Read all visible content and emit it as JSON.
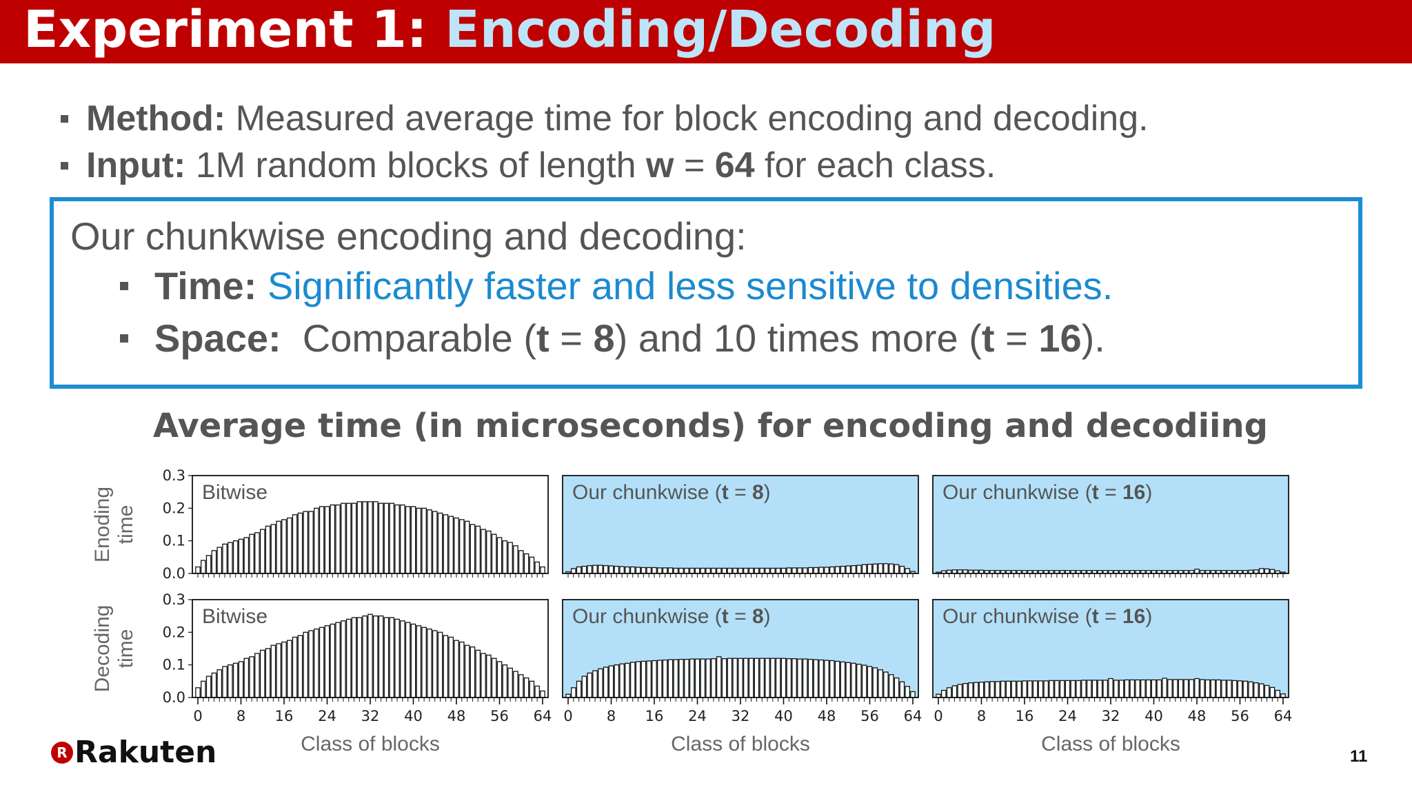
{
  "title": {
    "prefix": "Experiment 1: ",
    "accent": "Encoding/Decoding"
  },
  "bullets": [
    {
      "label": "Method:",
      "text": " Measured average time for block encoding and decoding."
    },
    {
      "label": "Input:",
      "text_before": " 1M random blocks of length ",
      "var": "w",
      "eq": " = ",
      "value": "64",
      "text_after": " for each class."
    }
  ],
  "box": {
    "heading": "Our chunkwise encoding and decoding:",
    "time_label": "Time:",
    "time_text": " Significantly faster and less sensitive to densities.",
    "space_label": "Space:",
    "space_text_1": "  Comparable (",
    "space_var_1": "t",
    "space_eq_1": " = ",
    "space_val_1": "8",
    "space_text_2": ") and 10 times more (",
    "space_var_2": "t",
    "space_eq_2": " = ",
    "space_val_2": "16",
    "space_text_3": ")."
  },
  "chart_heading": "Average time (in microseconds) for encoding and decodiing",
  "colors": {
    "brand_red": "#bf0000",
    "accent_blue": "#1b8ad0",
    "panel_blue": "#b3e0f8"
  },
  "chart_data": {
    "type": "bar",
    "x": [
      0,
      1,
      2,
      3,
      4,
      5,
      6,
      7,
      8,
      9,
      10,
      11,
      12,
      13,
      14,
      15,
      16,
      17,
      18,
      19,
      20,
      21,
      22,
      23,
      24,
      25,
      26,
      27,
      28,
      29,
      30,
      31,
      32,
      33,
      34,
      35,
      36,
      37,
      38,
      39,
      40,
      41,
      42,
      43,
      44,
      45,
      46,
      47,
      48,
      49,
      50,
      51,
      52,
      53,
      54,
      55,
      56,
      57,
      58,
      59,
      60,
      61,
      62,
      63,
      64
    ],
    "xticks": [
      0,
      8,
      16,
      24,
      32,
      40,
      48,
      56,
      64
    ],
    "xlim": [
      0,
      64
    ],
    "ylim": [
      0,
      0.3
    ],
    "yticks": [
      "0.0",
      "0.1",
      "0.2",
      "0.3"
    ],
    "xlabel": "Class of blocks",
    "row_labels": [
      [
        "Enoding",
        "time"
      ],
      [
        "Decoding",
        "time"
      ]
    ],
    "panels": [
      {
        "row": 0,
        "col": 0,
        "label": "Bitwise",
        "label_var": "",
        "label_eq": "",
        "label_val": "",
        "label_close": "",
        "shaded": false,
        "values": [
          0.02,
          0.04,
          0.055,
          0.07,
          0.08,
          0.09,
          0.095,
          0.1,
          0.105,
          0.11,
          0.12,
          0.125,
          0.135,
          0.145,
          0.15,
          0.16,
          0.165,
          0.17,
          0.18,
          0.185,
          0.19,
          0.19,
          0.2,
          0.205,
          0.205,
          0.21,
          0.21,
          0.215,
          0.215,
          0.215,
          0.22,
          0.22,
          0.22,
          0.22,
          0.215,
          0.215,
          0.215,
          0.21,
          0.21,
          0.205,
          0.205,
          0.2,
          0.2,
          0.195,
          0.19,
          0.185,
          0.18,
          0.175,
          0.17,
          0.165,
          0.16,
          0.15,
          0.145,
          0.135,
          0.13,
          0.12,
          0.11,
          0.1,
          0.095,
          0.085,
          0.07,
          0.06,
          0.05,
          0.035,
          0.02
        ]
      },
      {
        "row": 0,
        "col": 1,
        "label": "Our chunkwise (",
        "label_var": "t",
        "label_eq": " = ",
        "label_val": "8",
        "label_close": ")",
        "shaded": true,
        "values": [
          0.005,
          0.015,
          0.02,
          0.022,
          0.024,
          0.025,
          0.025,
          0.024,
          0.023,
          0.022,
          0.021,
          0.02,
          0.02,
          0.019,
          0.018,
          0.018,
          0.018,
          0.017,
          0.017,
          0.017,
          0.016,
          0.016,
          0.016,
          0.016,
          0.016,
          0.016,
          0.016,
          0.016,
          0.016,
          0.016,
          0.016,
          0.016,
          0.016,
          0.016,
          0.016,
          0.016,
          0.016,
          0.016,
          0.016,
          0.016,
          0.016,
          0.017,
          0.017,
          0.017,
          0.017,
          0.018,
          0.018,
          0.019,
          0.019,
          0.02,
          0.021,
          0.022,
          0.023,
          0.024,
          0.025,
          0.027,
          0.028,
          0.029,
          0.03,
          0.03,
          0.029,
          0.027,
          0.022,
          0.015,
          0.006
        ]
      },
      {
        "row": 0,
        "col": 2,
        "label": "Our chunkwise (",
        "label_var": "t",
        "label_eq": " = ",
        "label_val": "16",
        "label_close": ")",
        "shaded": true,
        "values": [
          0.004,
          0.008,
          0.01,
          0.011,
          0.011,
          0.011,
          0.01,
          0.01,
          0.01,
          0.009,
          0.009,
          0.009,
          0.009,
          0.009,
          0.009,
          0.009,
          0.009,
          0.009,
          0.009,
          0.009,
          0.009,
          0.009,
          0.009,
          0.009,
          0.009,
          0.009,
          0.009,
          0.009,
          0.009,
          0.009,
          0.009,
          0.009,
          0.009,
          0.009,
          0.009,
          0.009,
          0.009,
          0.009,
          0.009,
          0.009,
          0.009,
          0.009,
          0.009,
          0.009,
          0.009,
          0.009,
          0.009,
          0.009,
          0.013,
          0.009,
          0.009,
          0.009,
          0.009,
          0.009,
          0.009,
          0.009,
          0.009,
          0.009,
          0.01,
          0.011,
          0.015,
          0.014,
          0.012,
          0.008,
          0.004
        ]
      },
      {
        "row": 1,
        "col": 0,
        "label": "Bitwise",
        "label_var": "",
        "label_eq": "",
        "label_val": "",
        "label_close": "",
        "shaded": false,
        "values": [
          0.03,
          0.05,
          0.065,
          0.075,
          0.085,
          0.095,
          0.1,
          0.105,
          0.11,
          0.12,
          0.125,
          0.135,
          0.145,
          0.15,
          0.16,
          0.165,
          0.17,
          0.175,
          0.185,
          0.19,
          0.2,
          0.205,
          0.21,
          0.215,
          0.22,
          0.225,
          0.23,
          0.235,
          0.24,
          0.245,
          0.245,
          0.25,
          0.255,
          0.25,
          0.25,
          0.245,
          0.245,
          0.24,
          0.235,
          0.23,
          0.225,
          0.22,
          0.215,
          0.21,
          0.205,
          0.2,
          0.19,
          0.185,
          0.175,
          0.17,
          0.16,
          0.155,
          0.145,
          0.135,
          0.13,
          0.12,
          0.11,
          0.1,
          0.09,
          0.08,
          0.07,
          0.06,
          0.05,
          0.035,
          0.02
        ]
      },
      {
        "row": 1,
        "col": 1,
        "label": "Our chunkwise (",
        "label_var": "t",
        "label_eq": " = ",
        "label_val": "8",
        "label_close": ")",
        "shaded": true,
        "values": [
          0.01,
          0.03,
          0.05,
          0.065,
          0.075,
          0.082,
          0.088,
          0.093,
          0.097,
          0.1,
          0.103,
          0.105,
          0.108,
          0.11,
          0.111,
          0.112,
          0.113,
          0.114,
          0.115,
          0.116,
          0.116,
          0.117,
          0.117,
          0.118,
          0.118,
          0.118,
          0.118,
          0.119,
          0.125,
          0.119,
          0.12,
          0.12,
          0.12,
          0.12,
          0.12,
          0.12,
          0.12,
          0.12,
          0.12,
          0.12,
          0.12,
          0.119,
          0.119,
          0.118,
          0.118,
          0.117,
          0.116,
          0.115,
          0.114,
          0.113,
          0.111,
          0.109,
          0.107,
          0.105,
          0.102,
          0.099,
          0.095,
          0.091,
          0.085,
          0.078,
          0.07,
          0.06,
          0.048,
          0.034,
          0.018
        ]
      },
      {
        "row": 1,
        "col": 2,
        "label": "Our chunkwise (",
        "label_var": "t",
        "label_eq": " = ",
        "label_val": "16",
        "label_close": ")",
        "shaded": true,
        "values": [
          0.01,
          0.022,
          0.03,
          0.036,
          0.04,
          0.043,
          0.045,
          0.046,
          0.047,
          0.048,
          0.049,
          0.049,
          0.05,
          0.05,
          0.05,
          0.05,
          0.051,
          0.051,
          0.051,
          0.051,
          0.051,
          0.052,
          0.052,
          0.052,
          0.052,
          0.052,
          0.052,
          0.053,
          0.053,
          0.053,
          0.053,
          0.053,
          0.058,
          0.053,
          0.053,
          0.054,
          0.054,
          0.054,
          0.054,
          0.054,
          0.054,
          0.054,
          0.059,
          0.055,
          0.055,
          0.055,
          0.055,
          0.055,
          0.058,
          0.055,
          0.054,
          0.054,
          0.054,
          0.053,
          0.053,
          0.052,
          0.051,
          0.05,
          0.048,
          0.045,
          0.042,
          0.037,
          0.031,
          0.022,
          0.011
        ]
      }
    ]
  },
  "logo": {
    "mark": "R",
    "text": "Rakuten"
  },
  "page_number": "11"
}
